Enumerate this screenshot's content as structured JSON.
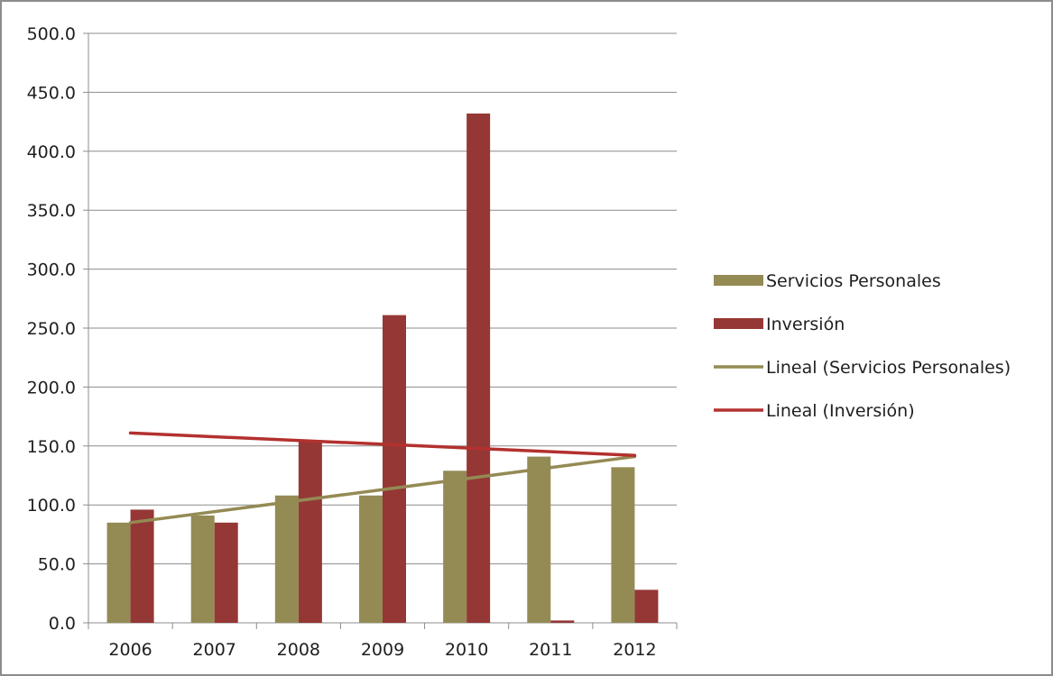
{
  "chart_data": {
    "type": "bar",
    "title": "",
    "xlabel": "",
    "ylabel": "",
    "categories": [
      "2006",
      "2007",
      "2008",
      "2009",
      "2010",
      "2011",
      "2012"
    ],
    "ylim": [
      0,
      500
    ],
    "yticks": [
      0,
      50,
      100,
      150,
      200,
      250,
      300,
      350,
      400,
      450,
      500
    ],
    "ytick_labels": [
      "0.0",
      "50.0",
      "100.0",
      "150.0",
      "200.0",
      "250.0",
      "300.0",
      "350.0",
      "400.0",
      "450.0",
      "500.0"
    ],
    "grid": true,
    "legend_position": "right",
    "series": [
      {
        "name": "Servicios Personales",
        "color": "#948a54",
        "values": [
          85,
          91,
          108,
          108,
          129,
          141,
          132
        ]
      },
      {
        "name": "Inversión",
        "color": "#953735",
        "values": [
          96,
          85,
          155,
          261,
          432,
          2,
          28
        ]
      }
    ],
    "trendlines": [
      {
        "name": "Lineal (Servicios Personales)",
        "color": "#948a54",
        "start": 85,
        "end": 141
      },
      {
        "name": "Lineal (Inversión)",
        "color": "#b3312e",
        "start": 161,
        "end": 142
      }
    ]
  }
}
